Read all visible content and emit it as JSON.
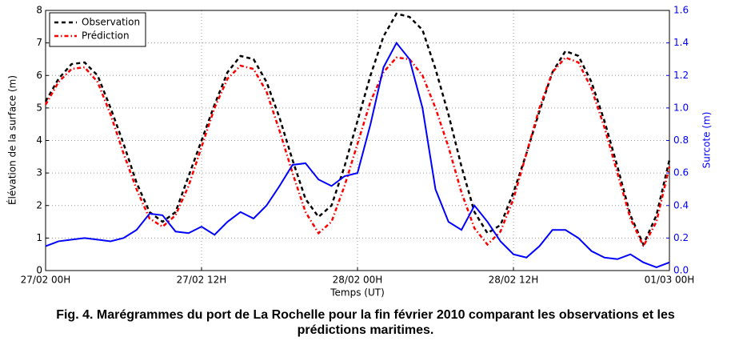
{
  "chart_data": {
    "type": "line",
    "xlabel": "Temps (UT)",
    "ylabel": "Élévation de la surface (m)",
    "y2label": "Surcote (m)",
    "caption": "Fig. 4. Marégrammes du port de La Rochelle pour la fin février 2010 comparant les observations et les prédictions maritimes.",
    "x": [
      0,
      1,
      2,
      3,
      4,
      5,
      6,
      7,
      8,
      9,
      10,
      11,
      12,
      13,
      14,
      15,
      16,
      17,
      18,
      19,
      20,
      21,
      22,
      23,
      24,
      25,
      26,
      27,
      28,
      29,
      30,
      31,
      32,
      33,
      34,
      35,
      36,
      37,
      38,
      39,
      40,
      41,
      42,
      43,
      44,
      45,
      46,
      47,
      48
    ],
    "xlim": [
      0,
      48
    ],
    "xticks": [
      {
        "value": 0,
        "label": "27/02 00H"
      },
      {
        "value": 12,
        "label": "27/02 12H"
      },
      {
        "value": 24,
        "label": "28/02 00H"
      },
      {
        "value": 36,
        "label": "28/02 12H"
      },
      {
        "value": 48,
        "label": "01/03 00H"
      }
    ],
    "ylim": [
      0,
      8
    ],
    "yticks": [
      0,
      1,
      2,
      3,
      4,
      5,
      6,
      7,
      8
    ],
    "y2lim": [
      0,
      1.6
    ],
    "y2ticks": [
      {
        "value": 0,
        "label": "0.0"
      },
      0.2,
      0.4,
      0.6,
      0.8,
      {
        "value": 1,
        "label": "1.0"
      },
      1.2,
      1.4,
      1.6
    ],
    "grid": true,
    "legend": "upper left",
    "series": [
      {
        "name": "Observation",
        "color": "#000000",
        "style": "dashed",
        "values": [
          5.2,
          5.9,
          6.35,
          6.4,
          6.0,
          5.0,
          3.9,
          2.7,
          1.8,
          1.5,
          1.8,
          2.9,
          4.0,
          5.1,
          6.1,
          6.6,
          6.5,
          5.8,
          4.7,
          3.4,
          2.2,
          1.65,
          2.0,
          3.2,
          4.6,
          6.0,
          7.2,
          7.9,
          7.8,
          7.4,
          6.2,
          4.8,
          3.2,
          1.8,
          1.15,
          1.4,
          2.4,
          3.6,
          4.9,
          6.1,
          6.75,
          6.6,
          5.8,
          4.6,
          3.2,
          1.7,
          0.8,
          1.7,
          3.4
        ]
      },
      {
        "name": "Prédiction",
        "color": "#ff0000",
        "style": "dashdot",
        "values": [
          5.1,
          5.8,
          6.2,
          6.25,
          5.8,
          4.8,
          3.6,
          2.5,
          1.6,
          1.35,
          1.7,
          2.6,
          3.8,
          5.0,
          5.9,
          6.3,
          6.2,
          5.5,
          4.3,
          3.0,
          1.8,
          1.15,
          1.5,
          2.6,
          3.9,
          5.2,
          6.1,
          6.55,
          6.5,
          6.0,
          5.0,
          3.8,
          2.4,
          1.3,
          0.8,
          1.2,
          2.2,
          3.6,
          5.0,
          6.1,
          6.55,
          6.4,
          5.6,
          4.4,
          3.0,
          1.6,
          0.75,
          1.5,
          3.2
        ]
      },
      {
        "color": "#0000ff",
        "style": "solid",
        "axis": "y2",
        "values": [
          0.15,
          0.18,
          0.19,
          0.2,
          0.19,
          0.18,
          0.2,
          0.25,
          0.35,
          0.34,
          0.24,
          0.23,
          0.27,
          0.22,
          0.3,
          0.36,
          0.32,
          0.4,
          0.52,
          0.65,
          0.66,
          0.56,
          0.52,
          0.58,
          0.6,
          0.9,
          1.25,
          1.4,
          1.3,
          1.0,
          0.5,
          0.3,
          0.25,
          0.4,
          0.3,
          0.18,
          0.1,
          0.08,
          0.15,
          0.25,
          0.25,
          0.2,
          0.12,
          0.08,
          0.07,
          0.1,
          0.05,
          0.02,
          0.05
        ]
      }
    ]
  }
}
